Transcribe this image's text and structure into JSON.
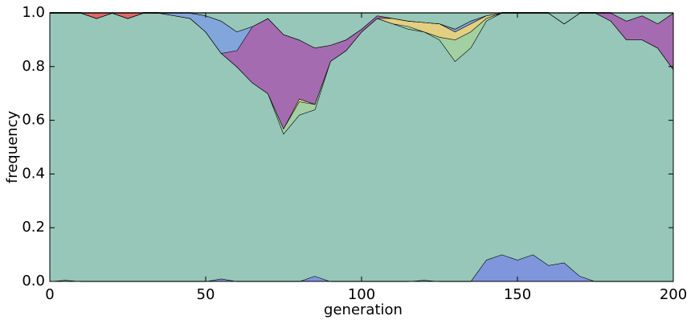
{
  "chart_data": {
    "type": "stacked-area",
    "x_label": "generation",
    "y_label": "frequency",
    "xlim": [
      0,
      200
    ],
    "xticks": [
      0,
      50,
      100,
      150,
      200
    ],
    "ylim": [
      0,
      1
    ],
    "yticks": [
      {
        "value": 0,
        "label": "0.0"
      },
      0.2,
      0.4,
      0.6,
      0.8,
      {
        "value": 1,
        "label": "1.0"
      }
    ],
    "x": [
      0,
      5,
      10,
      15,
      20,
      25,
      30,
      35,
      40,
      45,
      50,
      55,
      60,
      65,
      70,
      75,
      80,
      85,
      90,
      95,
      100,
      105,
      110,
      115,
      120,
      125,
      130,
      135,
      140,
      145,
      150,
      155,
      160,
      165,
      170,
      175,
      180,
      185,
      190,
      195,
      200
    ],
    "series": [
      {
        "color": "#7f96dc",
        "values": [
          0,
          0.005,
          0,
          0,
          0,
          0,
          0,
          0,
          0,
          0,
          0,
          0.01,
          0,
          0,
          0,
          0,
          0,
          0.02,
          0,
          0,
          0,
          0,
          0,
          0,
          0.005,
          0,
          0,
          0,
          0.08,
          0.1,
          0.08,
          0.1,
          0.06,
          0.07,
          0.02,
          0,
          0,
          0,
          0,
          0,
          0
        ]
      },
      {
        "color": "#96c7b9",
        "values": [
          1,
          0.995,
          1,
          0.98,
          1,
          0.98,
          1,
          1,
          0.99,
          0.98,
          0.93,
          0.84,
          0.8,
          0.74,
          0.7,
          0.55,
          0.62,
          0.62,
          0.82,
          0.86,
          0.93,
          0.98,
          0.96,
          0.94,
          0.925,
          0.9,
          0.82,
          0.87,
          0.89,
          0.9,
          0.92,
          0.9,
          0.94,
          0.89,
          0.98,
          1,
          0.97,
          0.9,
          0.9,
          0.87,
          0.79
        ]
      },
      {
        "color": "#a3d0a3",
        "values": [
          0,
          0,
          0,
          0,
          0,
          0,
          0,
          0,
          0,
          0,
          0,
          0,
          0,
          0,
          0,
          0.02,
          0.05,
          0.02,
          0,
          0,
          0,
          0,
          0,
          0.01,
          0,
          0.01,
          0.08,
          0.06,
          0.01,
          0,
          0,
          0,
          0,
          0,
          0,
          0,
          0,
          0,
          0,
          0,
          0
        ]
      },
      {
        "color": "#e2cf82",
        "values": [
          0,
          0,
          0,
          0,
          0,
          0,
          0,
          0,
          0,
          0,
          0,
          0,
          0,
          0,
          0,
          0,
          0.01,
          0,
          0,
          0,
          0,
          0,
          0.02,
          0.02,
          0.035,
          0.05,
          0.03,
          0.03,
          0.01,
          0,
          0,
          0,
          0,
          0,
          0,
          0,
          0,
          0,
          0,
          0,
          0
        ]
      },
      {
        "color": "#a46bb0",
        "values": [
          0,
          0,
          0,
          0,
          0,
          0,
          0,
          0,
          0,
          0,
          0,
          0,
          0.06,
          0.21,
          0.28,
          0.35,
          0.22,
          0.21,
          0.06,
          0.04,
          0.01,
          0.01,
          0,
          0,
          0,
          0,
          0,
          0,
          0,
          0,
          0,
          0,
          0,
          0,
          0,
          0,
          0.03,
          0.07,
          0.09,
          0.09,
          0.21
        ]
      },
      {
        "color": "#82a6dc",
        "values": [
          0,
          0,
          0,
          0,
          0,
          0,
          0,
          0,
          0.01,
          0.02,
          0.06,
          0.12,
          0.07,
          0,
          0,
          0,
          0,
          0,
          0,
          0,
          0,
          0,
          0,
          0,
          0,
          0,
          0.01,
          0.01,
          0,
          0,
          0,
          0,
          0,
          0,
          0,
          0,
          0,
          0,
          0,
          0,
          0
        ]
      },
      {
        "color": "#e06868",
        "values": [
          0,
          0,
          0,
          0.02,
          0,
          0.02,
          0,
          0,
          0,
          0,
          0,
          0,
          0,
          0,
          0,
          0,
          0,
          0,
          0,
          0,
          0,
          0,
          0,
          0,
          0,
          0,
          0,
          0,
          0,
          0,
          0,
          0,
          0,
          0,
          0,
          0,
          0,
          0,
          0,
          0,
          0
        ]
      },
      {
        "color": "#96c7b9",
        "values": [
          0,
          0,
          0,
          0,
          0,
          0,
          0,
          0,
          0,
          0,
          0.01,
          0.03,
          0.07,
          0.05,
          0.02,
          0.08,
          0.1,
          0.13,
          0.12,
          0.1,
          0.06,
          0.01,
          0.02,
          0.03,
          0.035,
          0.04,
          0.06,
          0.03,
          0.01,
          0,
          0,
          0,
          0,
          0.04,
          0,
          0,
          0,
          0.03,
          0.01,
          0.04,
          0
        ]
      }
    ]
  }
}
